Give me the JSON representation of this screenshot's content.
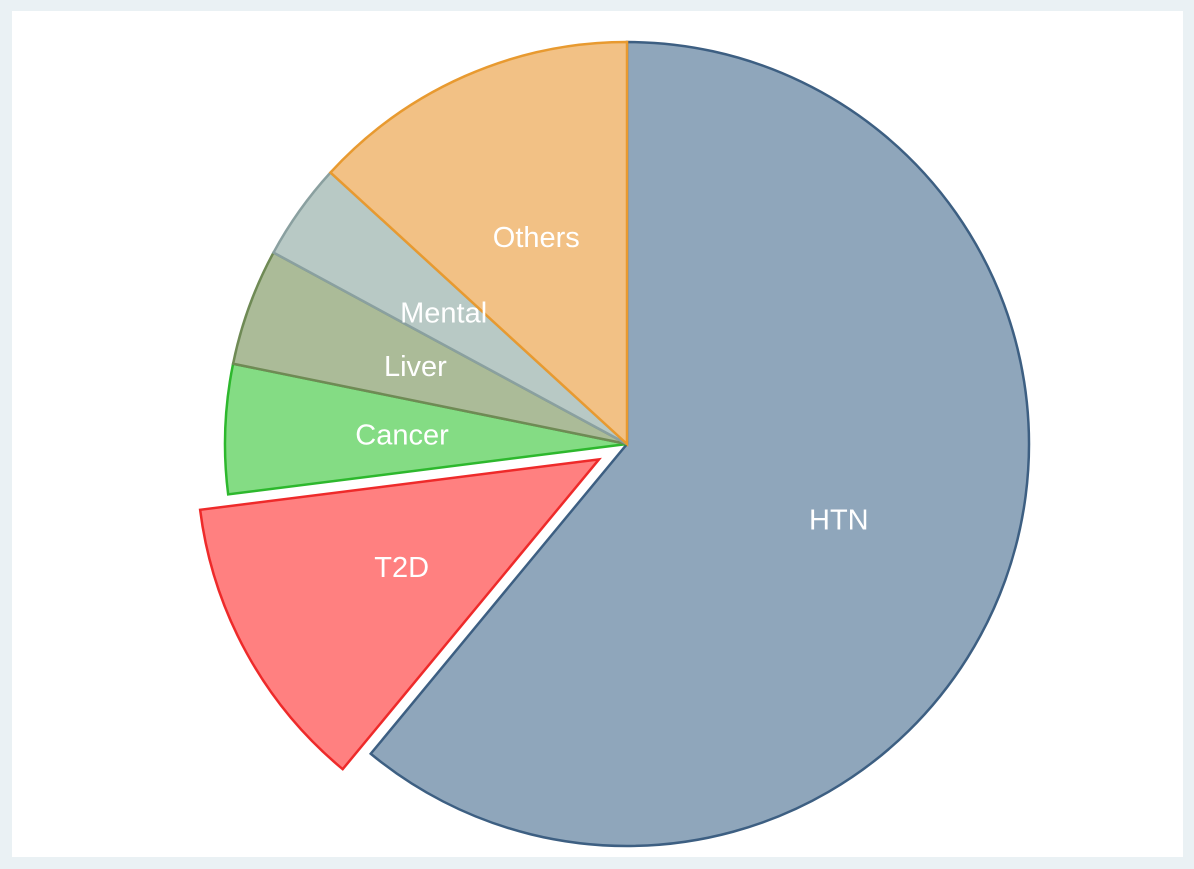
{
  "chart_data": {
    "type": "pie",
    "title": "",
    "slices": [
      {
        "label": "HTN",
        "value": 61.0,
        "fill": "#8fa6bb",
        "stroke": "#3d5f82",
        "exploded": false
      },
      {
        "label": "T2D",
        "value": 12.0,
        "fill": "#ff8080",
        "stroke": "#ee2a2a",
        "exploded": true
      },
      {
        "label": "Cancer",
        "value": 5.2,
        "fill": "#84dc84",
        "stroke": "#2db82d",
        "exploded": false
      },
      {
        "label": "Liver",
        "value": 4.7,
        "fill": "#abbb98",
        "stroke": "#6f8a55",
        "exploded": false
      },
      {
        "label": "Mental",
        "value": 3.9,
        "fill": "#b8c9c5",
        "stroke": "#8aa0a0",
        "exploded": false
      },
      {
        "label": "Others",
        "value": 13.2,
        "fill": "#f2c185",
        "stroke": "#e89a30",
        "exploded": false
      }
    ]
  }
}
